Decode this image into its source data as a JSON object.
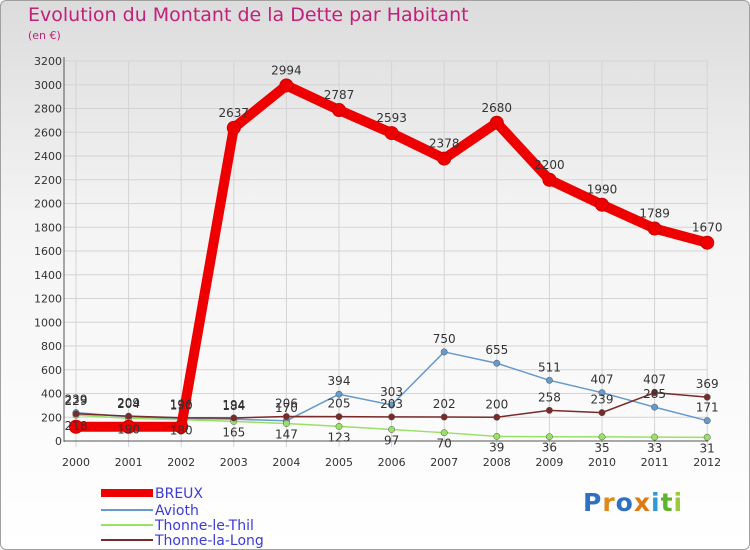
{
  "title": "Evolution du Montant de la Dette par Habitant",
  "subtitle": "(en €)",
  "logo": "Proxiti",
  "chart_data": {
    "type": "line",
    "title": "Evolution du Montant de la Dette par Habitant",
    "ylabel": "(en €)",
    "xlabel": "",
    "categories": [
      "2000",
      "2001",
      "2002",
      "2003",
      "2004",
      "2005",
      "2006",
      "2007",
      "2008",
      "2009",
      "2010",
      "2011",
      "2012"
    ],
    "ylim": [
      0,
      3200
    ],
    "yticks": [
      0,
      200,
      400,
      600,
      800,
      1000,
      1200,
      1400,
      1600,
      1800,
      2000,
      2200,
      2400,
      2600,
      2800,
      3000,
      3200
    ],
    "legend_position": "bottom-left",
    "series": [
      {
        "name": "BREUX",
        "color": "#ee0000",
        "values": [
          120,
          120,
          120,
          2637,
          2994,
          2787,
          2593,
          2378,
          2680,
          2200,
          1990,
          1789,
          1670
        ],
        "labels": [
          "",
          "",
          "",
          "2637",
          "2994",
          "2787",
          "2593",
          "2378",
          "2680",
          "2200",
          "1990",
          "1789",
          "1670"
        ]
      },
      {
        "name": "Avioth",
        "color": "#6699cc",
        "values": [
          239,
          204,
          190,
          184,
          170,
          394,
          303,
          750,
          655,
          511,
          407,
          285,
          171
        ],
        "labels": [
          "239",
          "204",
          "190",
          "184",
          "170",
          "394",
          "303",
          "750",
          "655",
          "511",
          "407",
          "285",
          "171"
        ]
      },
      {
        "name": "Thonne-le-Thil",
        "color": "#99e066",
        "values": [
          218,
          190,
          180,
          165,
          147,
          123,
          97,
          70,
          39,
          36,
          35,
          33,
          31
        ],
        "labels": [
          "218",
          "190",
          "180",
          "165",
          "147",
          "123",
          "97",
          "70",
          "39",
          "36",
          "35",
          "33",
          "31"
        ]
      },
      {
        "name": "Thonne-la-Long",
        "color": "#7a2a2a",
        "values": [
          229,
          209,
          196,
          194,
          206,
          205,
          203,
          202,
          200,
          258,
          239,
          407,
          369
        ],
        "labels": [
          "229",
          "209",
          "196",
          "194",
          "206",
          "205",
          "203",
          "202",
          "200",
          "258",
          "239",
          "407",
          "369"
        ]
      }
    ]
  }
}
